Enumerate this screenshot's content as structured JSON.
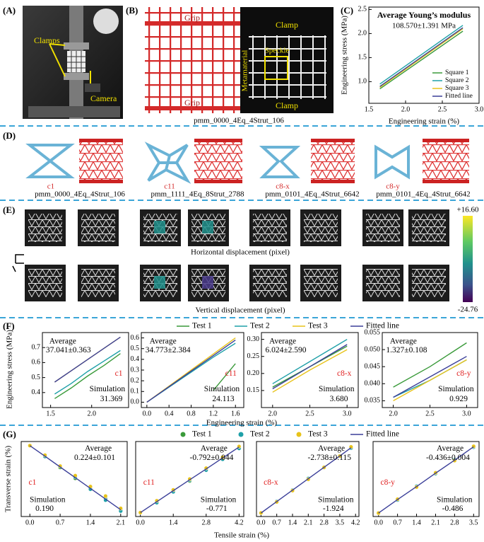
{
  "panels": {
    "A": {
      "label": "(A)",
      "clamps": "Clamps",
      "camera": "Camera"
    },
    "B": {
      "label": "(B)",
      "grip_top": "Grip",
      "grip_bottom": "Grip",
      "clamp_top": "Clamp",
      "clamp_bottom": "Clamp",
      "speckle": "Speckle",
      "metamaterial": "Metamaterial",
      "caption": "pmm_0000_4Eq_4Strut_106"
    },
    "C": {
      "label": "(C)"
    },
    "D": {
      "label": "(D)",
      "items": [
        {
          "name": "c1",
          "code": "pmm_0000_4Eq_4Strut_106"
        },
        {
          "name": "c11",
          "code": "pmm_1111_4Eq_8Strut_2788"
        },
        {
          "name": "c8-x",
          "code": "pmm_0101_4Eq_4Strut_6642"
        },
        {
          "name": "c8-y",
          "code": "pmm_0101_4Eq_4Strut_6642"
        }
      ]
    },
    "E": {
      "label": "(E)",
      "horizontal": "Horizontal displacement (pixel)",
      "vertical": "Vertical displacement (pixel)",
      "colorbar_max": "+16.60",
      "colorbar_min": "-24.76"
    },
    "F": {
      "label": "(F)"
    },
    "G": {
      "label": "(G)"
    }
  },
  "chart_data": [
    {
      "type": "line",
      "title": "Average Young’s modulus",
      "subtitle": "108.570±1.391 MPa",
      "x_label": "Engineering strain (%)",
      "y_label": "Engineering stress (MPa)",
      "x": [
        1.65,
        2.78
      ],
      "series": [
        {
          "name": "Square 1",
          "color": "#3a9a3a",
          "values": [
            0.85,
            2.05
          ]
        },
        {
          "name": "Square 2",
          "color": "#1fa0a8",
          "values": [
            0.95,
            2.17
          ]
        },
        {
          "name": "Square 3",
          "color": "#e8c31a",
          "values": [
            0.88,
            2.1
          ]
        },
        {
          "name": "Fitted line",
          "color": "#3b3f99",
          "values": [
            0.9,
            2.12
          ]
        }
      ],
      "xlim": [
        1.5,
        3.0
      ],
      "xticks": [
        {
          "value": 1.5,
          "label": "1.5"
        },
        {
          "value": 2.0,
          "label": "2.0"
        },
        {
          "value": 2.5,
          "label": "2.5"
        },
        {
          "value": 3.0,
          "label": "3.0"
        }
      ],
      "ylim": [
        0.55,
        2.55
      ],
      "yticks": [
        {
          "value": 1.0,
          "label": "1.0"
        },
        {
          "value": 1.5,
          "label": "1.5"
        },
        {
          "value": 2.0,
          "label": "2.0"
        },
        {
          "value": 2.5,
          "label": "2.5"
        }
      ],
      "legend": "lower right"
    },
    {
      "type": "line",
      "x_label": "Engineering strain (%)",
      "y_label": "Engineering stress (MPa)",
      "annotations": {
        "average": "Average",
        "average_value": "37.041±0.363",
        "name": "c1",
        "simulation": "Simulation",
        "simulation_value": "31.369"
      },
      "x": [
        1.55,
        1.75,
        1.95,
        2.15,
        2.35
      ],
      "series": [
        {
          "name": "Test 1",
          "color": "#3a9a3a",
          "values": [
            0.36,
            0.43,
            0.51,
            0.58,
            0.66
          ]
        },
        {
          "name": "Test 2",
          "color": "#1fa0a8",
          "values": [
            0.39,
            0.46,
            0.54,
            0.61,
            0.68
          ]
        },
        {
          "name": "Test 3",
          "color": "#e8c31a",
          "values": [
            0.47,
            0.545,
            0.62,
            0.695,
            0.77
          ]
        },
        {
          "name": "Fitted line",
          "color": "#3b3f99",
          "values": [
            0.47,
            0.545,
            0.62,
            0.695,
            0.77
          ]
        }
      ],
      "xlim": [
        1.4,
        2.45
      ],
      "xticks": [
        {
          "value": 1.5,
          "label": "1.5"
        },
        {
          "value": 2.0,
          "label": "2.0"
        }
      ],
      "ylim": [
        0.3,
        0.8
      ],
      "yticks": [
        0.4,
        0.5,
        0.6,
        0.7
      ]
    },
    {
      "type": "line",
      "annotations": {
        "average": "Average",
        "average_value": "34.773±2.384",
        "name": "c11",
        "simulation": "Simulation",
        "simulation_value": "24.113"
      },
      "x": [
        0.0,
        0.4,
        0.8,
        1.2,
        1.6
      ],
      "series": [
        {
          "name": "Test 1",
          "color": "#3a9a3a",
          "values": [
            null,
            null,
            null,
            0.11,
            0.36
          ]
        },
        {
          "name": "Test 2",
          "color": "#1fa0a8",
          "values": [
            0.0,
            0.14,
            0.28,
            0.42,
            0.55
          ]
        },
        {
          "name": "Test 3",
          "color": "#e8c31a",
          "values": [
            0.0,
            0.15,
            0.3,
            0.45,
            0.6
          ]
        },
        {
          "name": "Fitted line",
          "color": "#3b3f99",
          "values": [
            0.0,
            0.145,
            0.29,
            0.435,
            0.58
          ]
        }
      ],
      "xlim": [
        -0.1,
        1.75
      ],
      "xticks": [
        {
          "value": 0.0,
          "label": "0.0"
        },
        0.4,
        0.8,
        1.2,
        1.6
      ],
      "ylim": [
        -0.05,
        0.65
      ],
      "yticks": [
        {
          "value": 0.0,
          "label": "0.0"
        },
        0.1,
        0.2,
        0.3,
        0.4,
        0.5,
        0.6
      ]
    },
    {
      "type": "line",
      "annotations": {
        "average": "Average",
        "average_value": "6.024±2.590",
        "name": "c8-x",
        "simulation": "Simulation",
        "simulation_value": "3.680"
      },
      "x": [
        2.0,
        2.5,
        3.0
      ],
      "series": [
        {
          "name": "Test 1",
          "color": "#3a9a3a",
          "values": [
            0.16,
            0.22,
            0.28
          ]
        },
        {
          "name": "Test 2",
          "color": "#1fa0a8",
          "values": [
            0.17,
            0.235,
            0.3
          ]
        },
        {
          "name": "Test 3",
          "color": "#e8c31a",
          "values": [
            0.145,
            0.21,
            0.27
          ]
        },
        {
          "name": "Fitted line",
          "color": "#3b3f99",
          "values": [
            0.155,
            0.22,
            0.285
          ]
        }
      ],
      "xlim": [
        1.85,
        3.15
      ],
      "xticks": [
        {
          "value": 2.0,
          "label": "2.0"
        },
        {
          "value": 2.5,
          "label": "2.5"
        },
        {
          "value": 3.0,
          "label": "3.0"
        }
      ],
      "ylim": [
        0.1,
        0.32
      ],
      "yticks": [
        0.15,
        {
          "value": 0.2,
          "label": "0.20"
        },
        0.25,
        {
          "value": 0.3,
          "label": "0.30"
        }
      ]
    },
    {
      "type": "line",
      "annotations": {
        "average": "Average",
        "average_value": "1.327±0.108",
        "name": "c8-y",
        "simulation": "Simulation",
        "simulation_value": "0.929"
      },
      "x": [
        2.0,
        2.5,
        3.0
      ],
      "series": [
        {
          "name": "Test 1",
          "color": "#3a9a3a",
          "values": [
            0.039,
            0.045,
            0.052
          ]
        },
        {
          "name": "Test 2",
          "color": "#1fa0a8",
          "values": [
            0.036,
            0.041,
            0.047
          ]
        },
        {
          "name": "Test 3",
          "color": "#e8c31a",
          "values": [
            0.035,
            0.041,
            0.047
          ]
        },
        {
          "name": "Fitted line",
          "color": "#3b3f99",
          "values": [
            0.036,
            0.042,
            0.048
          ]
        }
      ],
      "xlim": [
        1.85,
        3.15
      ],
      "xticks": [
        {
          "value": 2.0,
          "label": "2.0"
        },
        {
          "value": 2.5,
          "label": "2.5"
        },
        {
          "value": 3.0,
          "label": "3.0"
        }
      ],
      "ylim": [
        0.033,
        0.055
      ],
      "yticks": [
        0.035,
        {
          "value": 0.04,
          "label": "0.040"
        },
        0.045,
        {
          "value": 0.05,
          "label": "0.050"
        },
        0.055
      ]
    },
    {
      "type": "scatter",
      "x_label": "Tensile strain (%)",
      "y_label": "Transverse strain (%)",
      "annotations": {
        "average": "Average",
        "average_value": "0.224±0.101",
        "name": "c1",
        "simulation": "Simulation",
        "simulation_value": "0.190"
      },
      "x": [
        0.0,
        0.35,
        0.7,
        1.05,
        1.4,
        1.75,
        2.1
      ],
      "series": [
        {
          "name": "Test 1",
          "color": "#3a9a3a",
          "style": "points",
          "values": [
            0.0,
            -0.08,
            -0.16,
            -0.24,
            -0.31,
            -0.39,
            -0.47
          ]
        },
        {
          "name": "Test 2",
          "color": "#1fa0a8",
          "style": "points",
          "values": [
            0.0,
            -0.08,
            -0.15,
            -0.23,
            -0.32,
            -0.4,
            -0.48
          ]
        },
        {
          "name": "Test 3",
          "color": "#e8c31a",
          "style": "points",
          "values": [
            0.0,
            -0.07,
            -0.15,
            -0.22,
            -0.3,
            -0.37,
            -0.46
          ]
        },
        {
          "name": "Fitted line",
          "color": "#3b3f99",
          "style": "line",
          "values": [
            0.0,
            -0.078,
            -0.157,
            -0.235,
            -0.314,
            -0.392,
            -0.47
          ]
        }
      ],
      "xlim": [
        -0.2,
        2.25
      ],
      "xticks": [
        {
          "value": 0.0,
          "label": "0.0"
        },
        0.7,
        1.4,
        2.1
      ],
      "ylim": [
        -0.52,
        0.03
      ]
    },
    {
      "type": "scatter",
      "annotations": {
        "average": "Average",
        "average_value": "-0.792±0.044",
        "name": "c11",
        "simulation": "Simulation",
        "simulation_value": "-0.771"
      },
      "x": [
        0.0,
        0.7,
        1.4,
        2.1,
        2.8,
        3.5,
        4.2
      ],
      "series": [
        {
          "name": "Test 1",
          "color": "#3a9a3a",
          "style": "points",
          "values": [
            0.0,
            0.55,
            1.1,
            1.6,
            2.2,
            2.75,
            3.3
          ]
        },
        {
          "name": "Test 2",
          "color": "#1fa0a8",
          "style": "points",
          "values": [
            0.0,
            0.5,
            1.05,
            1.65,
            2.15,
            2.7,
            3.25
          ]
        },
        {
          "name": "Test 3",
          "color": "#e8c31a",
          "style": "points",
          "values": [
            0.0,
            0.6,
            1.15,
            1.7,
            2.25,
            2.8,
            3.35
          ]
        },
        {
          "name": "Fitted line",
          "color": "#3b3f99",
          "style": "line",
          "values": [
            0.0,
            0.55,
            1.11,
            1.66,
            2.21,
            2.77,
            3.32
          ]
        }
      ],
      "xlim": [
        -0.2,
        4.4
      ],
      "xticks": [
        {
          "value": 0.0,
          "label": "0.0"
        },
        1.4,
        2.8,
        4.2
      ],
      "ylim": [
        -0.2,
        3.6
      ]
    },
    {
      "type": "scatter",
      "annotations": {
        "average": "Average",
        "average_value": "-2.738±0.115",
        "name": "c8-x",
        "simulation": "Simulation",
        "simulation_value": "-1.924"
      },
      "x": [
        0.0,
        0.7,
        1.4,
        2.1,
        2.8,
        3.5,
        4.0
      ],
      "series": [
        {
          "name": "Test 1",
          "color": "#3a9a3a",
          "style": "points",
          "values": [
            0.0,
            1.9,
            3.8,
            5.7,
            7.7,
            9.6,
            11.0
          ]
        },
        {
          "name": "Test 2",
          "color": "#1fa0a8",
          "style": "points",
          "values": [
            0.0,
            1.95,
            3.85,
            5.8,
            7.6,
            9.5,
            10.9
          ]
        },
        {
          "name": "Test 3",
          "color": "#e8c31a",
          "style": "points",
          "values": [
            0.0,
            1.85,
            3.75,
            5.65,
            7.65,
            9.55,
            11.1
          ]
        },
        {
          "name": "Fitted line",
          "color": "#3b3f99",
          "style": "line",
          "values": [
            0.0,
            1.92,
            3.83,
            5.75,
            7.67,
            9.58,
            10.95
          ]
        }
      ],
      "xlim": [
        -0.2,
        4.35
      ],
      "xticks": [
        {
          "value": 0.0,
          "label": "0.0"
        },
        0.7,
        1.4,
        2.1,
        2.8,
        3.5,
        4.2
      ],
      "ylim": [
        -0.6,
        12
      ]
    },
    {
      "type": "scatter",
      "annotations": {
        "average": "Average",
        "average_value": "-0.436±0.004",
        "name": "c8-y",
        "simulation": "Simulation",
        "simulation_value": "-0.486"
      },
      "x": [
        0.0,
        0.7,
        1.4,
        2.1,
        2.8,
        3.5
      ],
      "series": [
        {
          "name": "Test 1",
          "color": "#3a9a3a",
          "style": "points",
          "values": [
            0.0,
            0.31,
            0.61,
            0.92,
            1.22,
            1.53
          ]
        },
        {
          "name": "Test 2",
          "color": "#1fa0a8",
          "style": "points",
          "values": [
            0.0,
            0.3,
            0.62,
            0.91,
            1.23,
            1.52
          ]
        },
        {
          "name": "Test 3",
          "color": "#e8c31a",
          "style": "points",
          "values": [
            0.0,
            0.32,
            0.6,
            0.93,
            1.21,
            1.54
          ]
        },
        {
          "name": "Fitted line",
          "color": "#3b3f99",
          "style": "line",
          "values": [
            0.0,
            0.31,
            0.61,
            0.92,
            1.22,
            1.53
          ]
        }
      ],
      "xlim": [
        -0.2,
        3.7
      ],
      "xticks": [
        {
          "value": 0.0,
          "label": "0.0"
        },
        0.7,
        1.4,
        2.1,
        2.8,
        3.5
      ],
      "ylim": [
        -0.08,
        1.65
      ]
    }
  ]
}
